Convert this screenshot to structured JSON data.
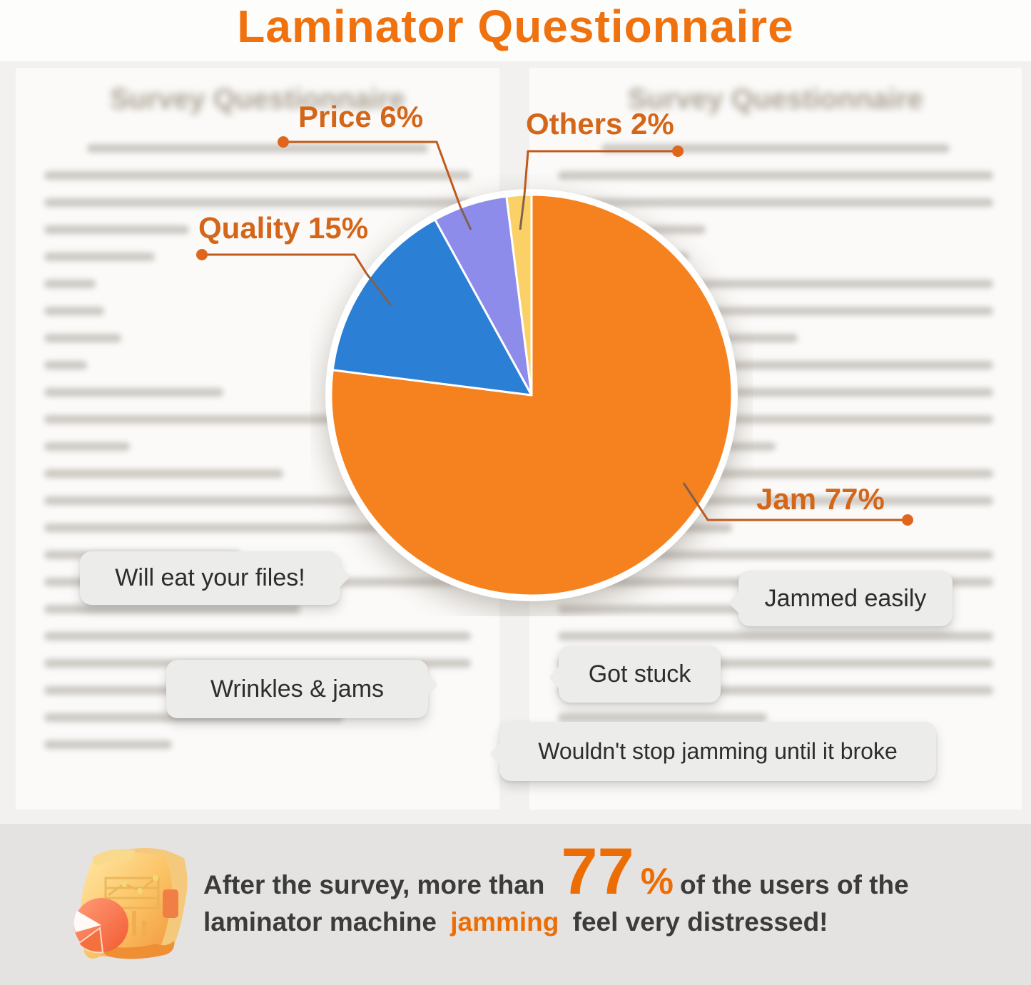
{
  "page_title": "Laminator Questionnaire",
  "background_documents": {
    "left_title": "Survey Questionnaire",
    "right_title": "Survey Questionnaire"
  },
  "chart_data": {
    "type": "pie",
    "title": "Laminator Questionnaire",
    "direction": "clockwise",
    "start_angle_deg": 0,
    "unit": "percent",
    "legend": "none",
    "slices": [
      {
        "name": "Jam",
        "value": 77,
        "color": "#f5821f",
        "label": "Jam 77%"
      },
      {
        "name": "Quality",
        "value": 15,
        "color": "#2b7fd4",
        "label": "Quality 15%"
      },
      {
        "name": "Price",
        "value": 6,
        "color": "#8d8ceb",
        "label": "Price 6%"
      },
      {
        "name": "Others",
        "value": 2,
        "color": "#fbd167",
        "label": "Others 2%"
      }
    ],
    "annotations": [
      "Will eat your files!",
      "Jammed easily",
      "Wrinkles & jams",
      "Got stuck",
      "Wouldn't stop jamming until it broke"
    ]
  },
  "callouts": [
    {
      "text": "Will eat your files!"
    },
    {
      "text": "Jammed easily"
    },
    {
      "text": "Wrinkles & jams"
    },
    {
      "text": "Got stuck"
    },
    {
      "text": "Wouldn't stop jamming until it broke"
    }
  ],
  "banner": {
    "text_before_number": "After the survey, more than",
    "number": "77",
    "percent_sign": "%",
    "text_after_number": "of the users of the",
    "line2_before": "laminator machine",
    "highlight": "jamming",
    "line2_after": "feel very distressed!"
  },
  "colors": {
    "title_orange": "#f0720e",
    "label_orange": "#d4661a",
    "leader_line": "#c05a1c",
    "banner_bg": "#e4e3e1",
    "bubble_bg": "#ececea"
  }
}
